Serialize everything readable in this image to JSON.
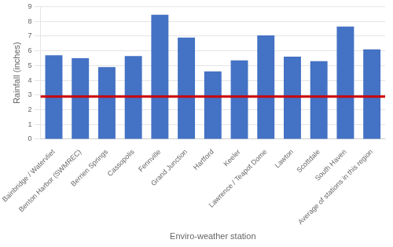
{
  "chart_data": {
    "type": "bar",
    "categories": [
      "Bainbridge / Watervliet",
      "Benton Harbor (SWMREC)",
      "Berrien Springs",
      "Cassopolis",
      "Fennville",
      "Grand Junction",
      "Hartford",
      "Keeler",
      "Lawrence / Teapot Dome",
      "Lawton",
      "Scottdale",
      "South Haven",
      "Average of stations in this region"
    ],
    "values": [
      5.7,
      5.5,
      4.9,
      5.65,
      8.45,
      6.9,
      4.6,
      5.35,
      7.05,
      5.6,
      5.3,
      7.65,
      6.1
    ],
    "color": "#4472C4",
    "xlabel": "Enviro-weather station",
    "ylabel": "Rainfall (inches)",
    "ylim": [
      0,
      9
    ],
    "yticks": [
      0,
      1,
      2,
      3,
      4,
      5,
      6,
      7,
      8,
      9
    ],
    "grid": true,
    "reference_line": {
      "value": 2.9,
      "color": "#CC0000"
    }
  }
}
